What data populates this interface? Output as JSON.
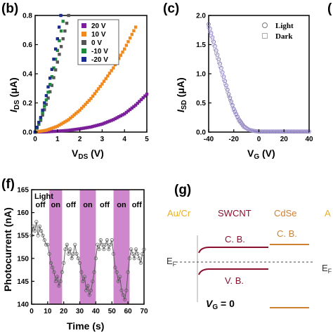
{
  "chart_data": [
    {
      "panel": "(b)",
      "type": "scatter",
      "xlabel": "V_DS (V)",
      "ylabel": "I_DS (μA)",
      "xlim": [
        0,
        5
      ],
      "ylim": [
        0,
        0.8
      ],
      "xticks": [
        "0",
        "1",
        "2",
        "3",
        "4",
        "5"
      ],
      "yticks": [
        "0.0",
        "0.2",
        "0.4",
        "0.6",
        "0.8"
      ],
      "legend_position": "top-right",
      "series": [
        {
          "name": "20 V",
          "color": "#7b1f9a",
          "x": [
            0,
            0.5,
            1,
            1.5,
            2,
            2.5,
            3,
            3.5,
            4,
            4.5,
            5
          ],
          "y": [
            0,
            0.002,
            0.006,
            0.012,
            0.022,
            0.035,
            0.055,
            0.085,
            0.125,
            0.185,
            0.26
          ]
        },
        {
          "name": "10 V",
          "color": "#f08a1e",
          "x": [
            0,
            0.5,
            1,
            1.5,
            2,
            2.5,
            3,
            3.5,
            4,
            4.5
          ],
          "y": [
            0,
            0.012,
            0.04,
            0.085,
            0.15,
            0.23,
            0.33,
            0.44,
            0.57,
            0.72
          ]
        },
        {
          "name": "0 V",
          "color": "#555555",
          "x": [
            0,
            0.25,
            0.5,
            0.75,
            1,
            1.25,
            1.5
          ],
          "y": [
            0,
            0.08,
            0.19,
            0.32,
            0.48,
            0.64,
            0.8
          ]
        },
        {
          "name": "-10 V",
          "color": "#1e8a3c",
          "x": [
            0,
            0.25,
            0.5,
            0.75,
            1,
            1.25
          ],
          "y": [
            0,
            0.09,
            0.22,
            0.38,
            0.56,
            0.76
          ]
        },
        {
          "name": "-20 V",
          "color": "#1c2c8c",
          "x": [
            0,
            0.25,
            0.5,
            0.75,
            1,
            1.15
          ],
          "y": [
            0,
            0.1,
            0.25,
            0.43,
            0.64,
            0.8
          ]
        }
      ]
    },
    {
      "panel": "(c)",
      "type": "scatter",
      "xlabel": "V_G (V)",
      "ylabel": "I_SD (μA)",
      "xlim": [
        -40,
        40
      ],
      "ylim": [
        0,
        2.0
      ],
      "xticks": [
        "-40",
        "-20",
        "0",
        "20",
        "40"
      ],
      "yticks": [
        "0.0",
        "0.5",
        "1.0",
        "1.5",
        "2.0"
      ],
      "legend_position": "top-right",
      "series": [
        {
          "name": "Light",
          "color": "#6a5aa8",
          "x": [
            -40,
            -36,
            -32,
            -28,
            -24,
            -20,
            -16,
            -12,
            -8,
            -4,
            0,
            10,
            20,
            30,
            40
          ],
          "y": [
            1.85,
            1.55,
            1.25,
            0.95,
            0.65,
            0.4,
            0.22,
            0.1,
            0.04,
            0.02,
            0.01,
            0.01,
            0.01,
            0.01,
            0.01
          ]
        },
        {
          "name": "Dark",
          "color": "#a89cd0",
          "x": [
            -40,
            -36,
            -32,
            -28,
            -24,
            -20,
            -16,
            -12,
            -8,
            -4,
            0,
            10,
            20,
            30,
            40
          ],
          "y": [
            1.8,
            1.5,
            1.2,
            0.9,
            0.62,
            0.38,
            0.2,
            0.09,
            0.04,
            0.02,
            0.01,
            0.01,
            0.01,
            0.01,
            0.01
          ]
        }
      ]
    },
    {
      "panel": "(f)",
      "type": "line",
      "xlabel": "Time (s)",
      "ylabel": "Photocurrent (nA)",
      "xlim": [
        0,
        70
      ],
      "ylim": [
        140,
        165
      ],
      "xticks": [
        "0",
        "10",
        "20",
        "30",
        "40",
        "50",
        "60",
        "70"
      ],
      "yticks": [
        "140",
        "145",
        "150",
        "155",
        "160",
        "165"
      ],
      "on_intervals": [
        [
          11,
          19
        ],
        [
          30,
          40
        ],
        [
          51,
          61
        ]
      ],
      "annotations": [
        "Light",
        "off",
        "on",
        "off",
        "on",
        "off",
        "on",
        "off"
      ],
      "series": [
        {
          "name": "",
          "color": "#555555",
          "x": [
            0,
            1,
            2,
            3,
            4,
            5,
            6,
            7,
            8,
            9,
            10,
            11,
            12,
            13,
            14,
            15,
            16,
            17,
            18,
            19,
            20,
            21,
            22,
            23,
            24,
            25,
            26,
            27,
            28,
            29,
            30,
            31,
            32,
            33,
            34,
            35,
            36,
            37,
            38,
            39,
            40,
            41,
            42,
            43,
            44,
            45,
            46,
            47,
            48,
            49,
            50,
            51,
            52,
            53,
            54,
            55,
            56,
            57,
            58,
            59,
            60,
            61,
            62,
            63,
            64,
            65,
            66,
            67,
            68,
            69,
            70
          ],
          "y": [
            155,
            157,
            156,
            158,
            155,
            157,
            156,
            155,
            154,
            153,
            153,
            151,
            149,
            148,
            147,
            145,
            146,
            144,
            145,
            147,
            149,
            152,
            153,
            151,
            152,
            150,
            151,
            153,
            151,
            150,
            149,
            147,
            145,
            146,
            143,
            144,
            142,
            143,
            145,
            147,
            150,
            153,
            152,
            154,
            153,
            152,
            153,
            154,
            152,
            153,
            154,
            151,
            148,
            147,
            145,
            146,
            143,
            142,
            141,
            143,
            147,
            150,
            152,
            151,
            150,
            152,
            151,
            150,
            149,
            151,
            152
          ]
        }
      ]
    }
  ],
  "labels": {
    "panel_b": "(b)",
    "panel_c": "(c)",
    "panel_f": "(f)",
    "panel_g": "(g)",
    "panel_left_cut": "(",
    "legend_c_light": "Light",
    "legend_c_dark": "Dark",
    "b_xlabel": "V",
    "b_xlabel_sub": "DS",
    "b_xlabel_unit": " (V)",
    "b_ylabel": "I",
    "b_ylabel_sub": "DS",
    "b_ylabel_unit": " (μA)",
    "c_xlabel": "V",
    "c_xlabel_sub": "G",
    "c_xlabel_unit": " (V)",
    "c_ylabel": "I",
    "c_ylabel_sub": "SD",
    "c_ylabel_unit": " (μA)",
    "f_xlabel": "Time (s)",
    "f_ylabel": "Photocurrent (nA)",
    "f_light": "Light",
    "f_states": [
      "off",
      "on",
      "off",
      "on",
      "off",
      "on",
      "off"
    ]
  },
  "band_diagram": {
    "left_metal": "Au/Cr",
    "swcnt": "SWCNT",
    "cdse": "CdSe",
    "right_metal_cut": "A",
    "cb_swcnt": "C. B.",
    "vb_swcnt": "V. B.",
    "cb_cdse": "C. B.",
    "ef_left": "E",
    "ef_left_sub": "F",
    "ef_right": "E",
    "ef_right_sub": "F",
    "vg_label": "V",
    "vg_sub": "G",
    "vg_value": " = 0",
    "colors": {
      "metal": "#e8b020",
      "swcnt": "#8a1030",
      "cdse": "#d08030",
      "text": "#333333"
    }
  }
}
